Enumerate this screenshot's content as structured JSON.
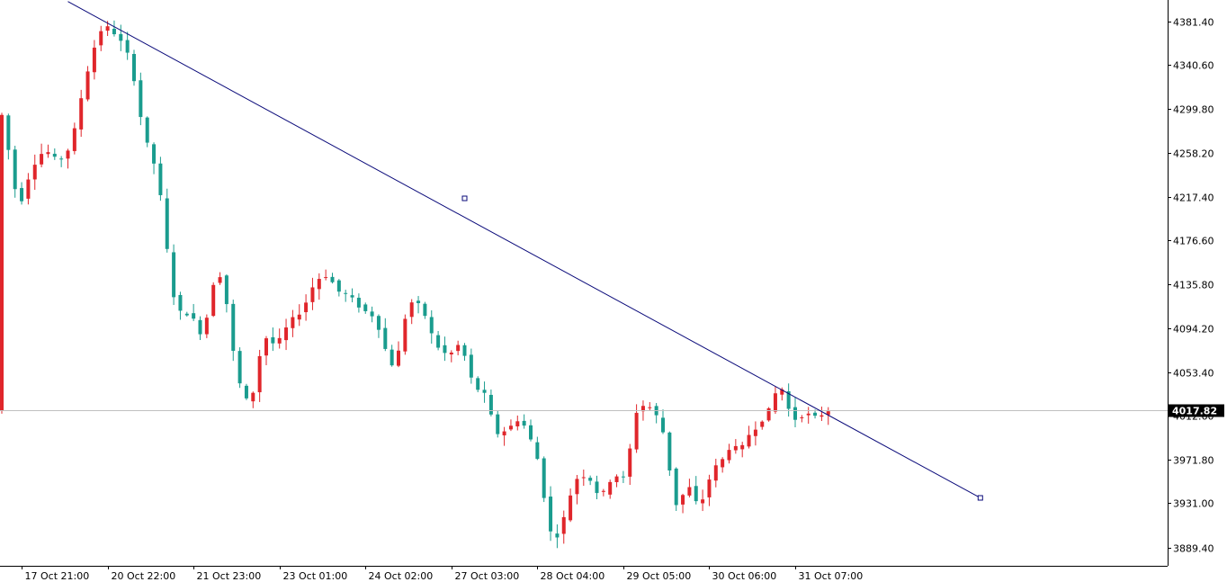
{
  "chart_data": {
    "type": "candlestick",
    "colors": {
      "background": "#ffffff",
      "bull_candle": "#e0262b",
      "bear_candle": "#1a9c8e",
      "trendline": "#0a0a7a",
      "current_price_line": "#c0c0c0",
      "price_tag_bg": "#000000",
      "price_tag_text": "#ffffff",
      "axis_line": "#000000"
    },
    "y_axis": {
      "range": [
        3865,
        4400
      ],
      "ticks": [
        "4381.40",
        "4340.60",
        "4299.80",
        "4258.20",
        "4217.40",
        "4176.60",
        "4135.80",
        "4094.20",
        "4053.40",
        "4012.60",
        "3971.80",
        "3931.00",
        "3889.40"
      ]
    },
    "x_axis": {
      "range": [
        0,
        125
      ],
      "ticks": [
        {
          "label": "17 Oct 21:00",
          "bar": 3
        },
        {
          "label": "20 Oct 22:00",
          "bar": 16
        },
        {
          "label": "21 Oct 23:00",
          "bar": 29
        },
        {
          "label": "23 Oct 01:00",
          "bar": 42
        },
        {
          "label": "24 Oct 02:00",
          "bar": 55
        },
        {
          "label": "27 Oct 03:00",
          "bar": 68
        },
        {
          "label": "28 Oct 04:00",
          "bar": 81
        },
        {
          "label": "29 Oct 05:00",
          "bar": 94
        },
        {
          "label": "30 Oct 06:00",
          "bar": 107
        },
        {
          "label": "31 Oct 07:00",
          "bar": 120
        }
      ]
    },
    "current_price": "4017.82",
    "trendline": {
      "points": [
        [
          10,
          4400
        ],
        [
          70,
          4216
        ],
        [
          148,
          3936
        ]
      ]
    },
    "path_anchors": [
      [
        0,
        4310
      ],
      [
        2,
        4245
      ],
      [
        3,
        4205
      ],
      [
        5,
        4245
      ],
      [
        7,
        4262
      ],
      [
        9,
        4250
      ],
      [
        11,
        4265
      ],
      [
        13,
        4325
      ],
      [
        15,
        4368
      ],
      [
        16,
        4378
      ],
      [
        18,
        4368
      ],
      [
        20,
        4345
      ],
      [
        21,
        4310
      ],
      [
        22,
        4275
      ],
      [
        24,
        4240
      ],
      [
        25,
        4195
      ],
      [
        26,
        4140
      ],
      [
        27,
        4110
      ],
      [
        29,
        4108
      ],
      [
        31,
        4085
      ],
      [
        32,
        4125
      ],
      [
        33,
        4148
      ],
      [
        34,
        4140
      ],
      [
        35,
        4095
      ],
      [
        36,
        4050
      ],
      [
        38,
        4020
      ],
      [
        39,
        4050
      ],
      [
        40,
        4088
      ],
      [
        42,
        4078
      ],
      [
        44,
        4100
      ],
      [
        46,
        4112
      ],
      [
        48,
        4140
      ],
      [
        50,
        4145
      ],
      [
        51,
        4130
      ],
      [
        53,
        4125
      ],
      [
        55,
        4112
      ],
      [
        57,
        4105
      ],
      [
        59,
        4065
      ],
      [
        60,
        4057
      ],
      [
        62,
        4120
      ],
      [
        64,
        4115
      ],
      [
        65,
        4098
      ],
      [
        66,
        4080
      ],
      [
        68,
        4068
      ],
      [
        70,
        4082
      ],
      [
        71,
        4055
      ],
      [
        72,
        4040
      ],
      [
        74,
        4030
      ],
      [
        75,
        3995
      ],
      [
        77,
        4000
      ],
      [
        79,
        4012
      ],
      [
        80,
        3995
      ],
      [
        81,
        3985
      ],
      [
        82,
        3960
      ],
      [
        83,
        3915
      ],
      [
        84,
        3893
      ],
      [
        86,
        3925
      ],
      [
        87,
        3953
      ],
      [
        89,
        3958
      ],
      [
        90,
        3948
      ],
      [
        91,
        3935
      ],
      [
        93,
        3958
      ],
      [
        95,
        3953
      ],
      [
        96,
        4010
      ],
      [
        97,
        4023
      ],
      [
        99,
        4020
      ],
      [
        100,
        4005
      ],
      [
        101,
        3990
      ],
      [
        102,
        3935
      ],
      [
        103,
        3925
      ],
      [
        104,
        3952
      ],
      [
        106,
        3925
      ],
      [
        107,
        3945
      ],
      [
        108,
        3962
      ],
      [
        110,
        3975
      ],
      [
        111,
        3990
      ],
      [
        112,
        3975
      ],
      [
        113,
        3992
      ],
      [
        115,
        4005
      ],
      [
        117,
        4022
      ],
      [
        118,
        4045
      ],
      [
        119,
        4030
      ],
      [
        120,
        4008
      ],
      [
        122,
        4015
      ],
      [
        124,
        4010
      ],
      [
        125,
        4018
      ]
    ]
  }
}
